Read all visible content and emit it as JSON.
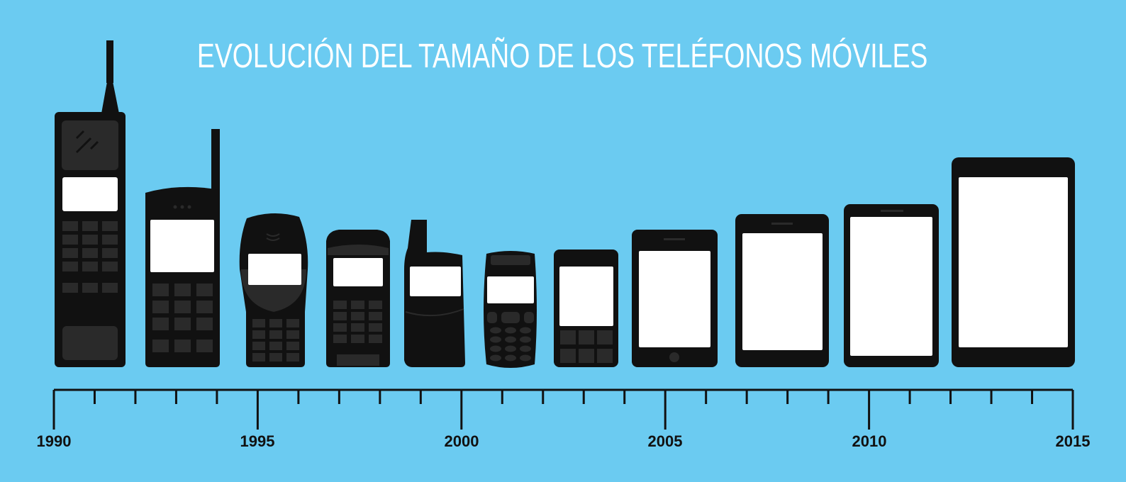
{
  "title": "EVOLUCIÓN DEL TAMAÑO DE LOS TELÉFONOS MÓVILES",
  "colors": {
    "background": "#6bcbf1",
    "phone_body": "#111111",
    "phone_detail": "#2a2a2a",
    "screen": "#ffffff",
    "title": "#ffffff",
    "axis": "#111111"
  },
  "timeline": {
    "start_year": 1990,
    "end_year": 2015,
    "labels": [
      "1990",
      "1995",
      "2000",
      "2005",
      "2010",
      "2015"
    ]
  },
  "phones": [
    {
      "id": "brick-phone",
      "icon": "brick-phone-icon"
    },
    {
      "id": "antenna-phone",
      "icon": "antenna-phone-icon"
    },
    {
      "id": "rounded-phone",
      "icon": "rounded-phone-icon"
    },
    {
      "id": "candybar-phone",
      "icon": "candybar-phone-icon"
    },
    {
      "id": "stub-antenna-phone",
      "icon": "stub-antenna-phone-icon"
    },
    {
      "id": "compact-phone",
      "icon": "compact-phone-icon"
    },
    {
      "id": "keyboard-phone",
      "icon": "keyboard-phone-icon"
    },
    {
      "id": "smartphone-small",
      "icon": "smartphone-icon"
    },
    {
      "id": "smartphone-medium",
      "icon": "smartphone-icon"
    },
    {
      "id": "smartphone-large",
      "icon": "smartphone-icon"
    },
    {
      "id": "phablet",
      "icon": "phablet-icon"
    }
  ]
}
